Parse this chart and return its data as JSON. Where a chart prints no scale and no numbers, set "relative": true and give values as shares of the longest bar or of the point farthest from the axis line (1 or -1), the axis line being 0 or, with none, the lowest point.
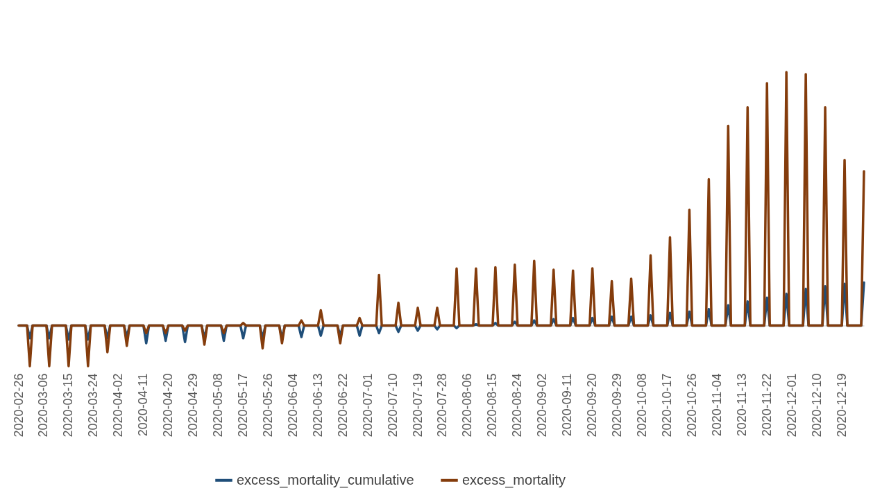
{
  "chart_data": {
    "type": "line",
    "relative": true,
    "legend": "bottom",
    "grid": false,
    "x": [
      "2020-02-26",
      "2020-02-29",
      "2020-03-01",
      "2020-03-02",
      "2020-03-07",
      "2020-03-08",
      "2020-03-09",
      "2020-03-14",
      "2020-03-15",
      "2020-03-16",
      "2020-03-21",
      "2020-03-22",
      "2020-03-23",
      "2020-03-28",
      "2020-03-29",
      "2020-03-30",
      "2020-04-04",
      "2020-04-05",
      "2020-04-06",
      "2020-04-11",
      "2020-04-12",
      "2020-04-13",
      "2020-04-18",
      "2020-04-19",
      "2020-04-20",
      "2020-04-25",
      "2020-04-26",
      "2020-04-27",
      "2020-05-02",
      "2020-05-03",
      "2020-05-04",
      "2020-05-09",
      "2020-05-10",
      "2020-05-11",
      "2020-05-16",
      "2020-05-17",
      "2020-05-18",
      "2020-05-23",
      "2020-05-24",
      "2020-05-25",
      "2020-05-30",
      "2020-05-31",
      "2020-06-01",
      "2020-06-06",
      "2020-06-07",
      "2020-06-08",
      "2020-06-13",
      "2020-06-14",
      "2020-06-15",
      "2020-06-20",
      "2020-06-21",
      "2020-06-22",
      "2020-06-27",
      "2020-06-28",
      "2020-06-29",
      "2020-07-04",
      "2020-07-05",
      "2020-07-06",
      "2020-07-11",
      "2020-07-12",
      "2020-07-13",
      "2020-07-18",
      "2020-07-19",
      "2020-07-20",
      "2020-07-25",
      "2020-07-26",
      "2020-07-27",
      "2020-08-01",
      "2020-08-02",
      "2020-08-03",
      "2020-08-08",
      "2020-08-09",
      "2020-08-10",
      "2020-08-15",
      "2020-08-16",
      "2020-08-17",
      "2020-08-22",
      "2020-08-23",
      "2020-08-24",
      "2020-08-29",
      "2020-08-30",
      "2020-08-31",
      "2020-09-05",
      "2020-09-06",
      "2020-09-07",
      "2020-09-12",
      "2020-09-13",
      "2020-09-14",
      "2020-09-19",
      "2020-09-20",
      "2020-09-21",
      "2020-09-26",
      "2020-09-27",
      "2020-09-28",
      "2020-10-03",
      "2020-10-04",
      "2020-10-05",
      "2020-10-10",
      "2020-10-11",
      "2020-10-12",
      "2020-10-17",
      "2020-10-18",
      "2020-10-19",
      "2020-10-24",
      "2020-10-25",
      "2020-10-26",
      "2020-10-31",
      "2020-11-01",
      "2020-11-02",
      "2020-11-07",
      "2020-11-08",
      "2020-11-09",
      "2020-11-14",
      "2020-11-15",
      "2020-11-16",
      "2020-11-21",
      "2020-11-22",
      "2020-11-23",
      "2020-11-28",
      "2020-11-29",
      "2020-11-30",
      "2020-12-05",
      "2020-12-06",
      "2020-12-07",
      "2020-12-12",
      "2020-12-13",
      "2020-12-14",
      "2020-12-19",
      "2020-12-20",
      "2020-12-21",
      "2020-12-26",
      "2020-12-27"
    ],
    "xlim": [
      "2020-02-26",
      "2020-12-27"
    ],
    "xticks": [
      "2020-02-26",
      "2020-03-06",
      "2020-03-15",
      "2020-03-24",
      "2020-04-02",
      "2020-04-11",
      "2020-04-20",
      "2020-04-29",
      "2020-05-08",
      "2020-05-17",
      "2020-05-26",
      "2020-06-04",
      "2020-06-13",
      "2020-06-22",
      "2020-07-01",
      "2020-07-10",
      "2020-07-19",
      "2020-07-28",
      "2020-08-06",
      "2020-08-15",
      "2020-08-24",
      "2020-09-02",
      "2020-09-11",
      "2020-09-20",
      "2020-09-29",
      "2020-10-08",
      "2020-10-17",
      "2020-10-26",
      "2020-11-04",
      "2020-11-13",
      "2020-11-22",
      "2020-12-01",
      "2020-12-10",
      "2020-12-19"
    ],
    "series": [
      {
        "name": "excess_mortality_cumulative",
        "color": "#1f4e79",
        "values": [
          0,
          0,
          -0.05,
          0,
          0,
          -0.05,
          0,
          0,
          -0.055,
          0,
          0,
          -0.055,
          0,
          0,
          -0.05,
          0,
          0,
          -0.045,
          0,
          0,
          -0.07,
          0,
          0,
          -0.06,
          0,
          0,
          -0.065,
          0,
          0,
          -0.05,
          0,
          0,
          -0.06,
          0,
          0,
          -0.05,
          0,
          0,
          -0.05,
          0,
          0,
          -0.05,
          0,
          0,
          -0.045,
          0,
          0,
          -0.04,
          0,
          0,
          -0.04,
          0,
          0,
          -0.04,
          0,
          0,
          -0.03,
          0,
          0,
          -0.025,
          0,
          0,
          -0.02,
          0,
          0,
          -0.015,
          0,
          0,
          -0.01,
          0,
          0,
          0.005,
          0,
          0,
          0.01,
          0,
          0,
          0.015,
          0,
          0,
          0.02,
          0,
          0,
          0.025,
          0,
          0,
          0.03,
          0,
          0,
          0.03,
          0,
          0,
          0.035,
          0,
          0,
          0.035,
          0,
          0,
          0.04,
          0,
          0,
          0.05,
          0,
          0,
          0.055,
          0,
          0,
          0.065,
          0,
          0,
          0.08,
          0,
          0,
          0.095,
          0,
          0,
          0.11,
          0,
          0,
          0.125,
          0,
          0,
          0.145,
          0,
          0,
          0.155,
          0,
          0,
          0.165,
          0,
          0,
          0.17
        ]
      },
      {
        "name": "excess_mortality",
        "color": "#843c0c",
        "values": [
          0,
          0,
          -0.16,
          0,
          0,
          -0.16,
          0,
          0,
          -0.16,
          0,
          0,
          -0.16,
          0,
          0,
          -0.105,
          0,
          0,
          -0.08,
          0,
          0,
          -0.03,
          0,
          0,
          -0.03,
          0,
          0,
          -0.02,
          0,
          0,
          -0.075,
          0,
          0,
          -0.03,
          0,
          0,
          0.01,
          0,
          0,
          -0.09,
          0,
          0,
          -0.07,
          0,
          0,
          0.02,
          0,
          0,
          0.06,
          0,
          0,
          -0.07,
          0,
          0,
          0.03,
          0,
          0,
          0.2,
          0,
          0,
          0.09,
          0,
          0,
          0.07,
          0,
          0,
          0.07,
          0,
          0,
          0.225,
          0,
          0,
          0.225,
          0,
          0,
          0.23,
          0,
          0,
          0.24,
          0,
          0,
          0.255,
          0,
          0,
          0.22,
          0,
          0,
          0.217,
          0,
          0,
          0.226,
          0,
          0,
          0.175,
          0,
          0,
          0.185,
          0,
          0,
          0.277,
          0,
          0,
          0.348,
          0,
          0,
          0.457,
          0,
          0,
          0.577,
          0,
          0,
          0.788,
          0,
          0,
          0.861,
          0,
          0,
          0.956,
          0,
          0,
          1,
          0,
          0,
          0.992,
          0,
          0,
          0.861,
          0,
          0,
          0.653,
          0,
          0,
          0.609
        ]
      }
    ]
  }
}
